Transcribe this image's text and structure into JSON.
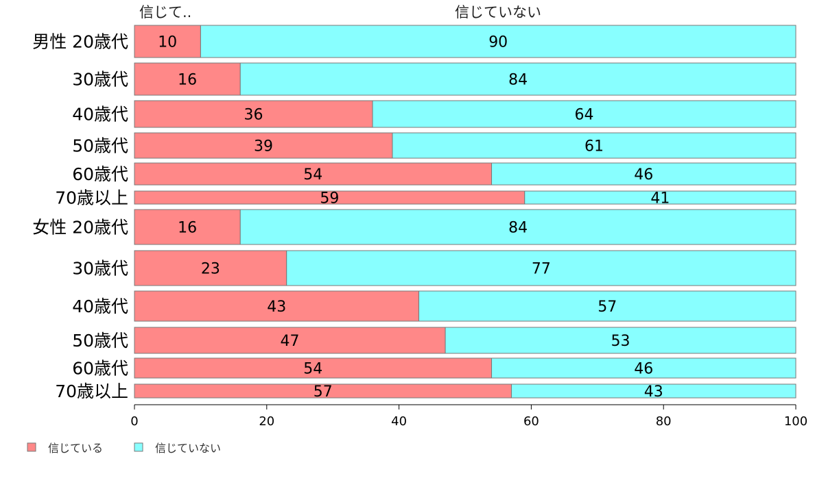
{
  "chart_data": {
    "type": "bar",
    "orientation": "horizontal",
    "stacked": true,
    "categories": [
      "男性 20歳代",
      "30歳代",
      "40歳代",
      "50歳代",
      "60歳代",
      "70歳以上",
      "女性 20歳代",
      "30歳代",
      "40歳代",
      "50歳代",
      "60歳代",
      "70歳以上"
    ],
    "series": [
      {
        "name": "信じている",
        "color": "#FF8888",
        "values": [
          10,
          16,
          36,
          39,
          54,
          59,
          16,
          23,
          43,
          47,
          54,
          57
        ]
      },
      {
        "name": "信じていない",
        "color": "#88FFFF",
        "values": [
          90,
          84,
          64,
          61,
          46,
          41,
          84,
          77,
          57,
          53,
          46,
          43
        ]
      }
    ],
    "top_labels": [
      "信じて..",
      "信じていない"
    ],
    "xlim": [
      0,
      100
    ],
    "xticks": [
      0,
      20,
      40,
      60,
      80,
      100
    ],
    "grid": false,
    "legend": {
      "placement": "bottom-left"
    }
  }
}
